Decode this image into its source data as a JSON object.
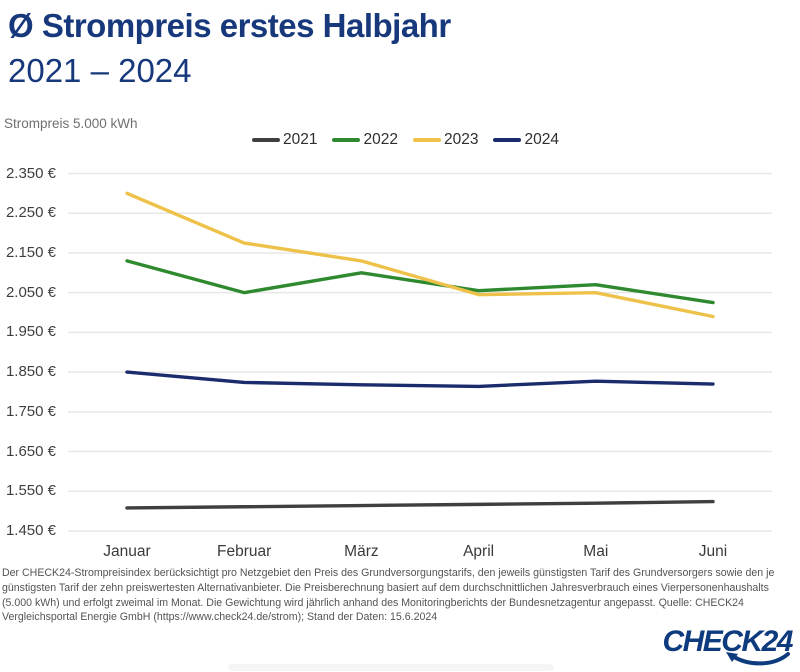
{
  "header": {
    "title": "Ø Strompreis erstes Halbjahr",
    "subtitle": "2021 – 2024"
  },
  "axis_unit_label": "Strompreis 5.000 kWh",
  "footer": {
    "disclaimer": "Der CHECK24-Strompreisindex berücksichtigt pro Netzgebiet den Preis des Grundversorgungstarifs, den jeweils günstigsten Tarif des Grundversorgers sowie den je günstigsten Tarif der zehn preiswertesten Alternativanbieter. Die Preisberechnung basiert auf dem durchschnittlichen Jahresverbrauch eines Vierpersonenhaushalts (5.000 kWh) und erfolgt zweimal im Monat. Die Gewichtung wird jährlich anhand des Monitoringberichts der Bundesnetzagentur angepasst. Quelle: CHECK24 Vergleichsportal Energie GmbH (https://www.check24.de/strom); Stand der Daten: 15.6.2024"
  },
  "logo": {
    "text": "CHECK24",
    "color": "#0e3a7e"
  },
  "colors": {
    "title_navy": "#17397c",
    "gridline": "#e7e7e7",
    "tick_text": "#3f3f3f"
  },
  "chart_data": {
    "type": "line",
    "title": "Ø Strompreis erstes Halbjahr 2021 – 2024",
    "xlabel": "",
    "ylabel": "Strompreis 5.000 kWh",
    "grid": true,
    "legend_position": "top",
    "ylim": [
      1.45,
      2.35
    ],
    "x": [
      "Januar",
      "Februar",
      "März",
      "April",
      "Mai",
      "Juni"
    ],
    "y_ticks": [
      {
        "label": "2.350 €",
        "value": 2.35
      },
      {
        "label": "2.250 €",
        "value": 2.25
      },
      {
        "label": "2.150 €",
        "value": 2.15
      },
      {
        "label": "2.050 €",
        "value": 2.05
      },
      {
        "label": "1.950 €",
        "value": 1.95
      },
      {
        "label": "1.850 €",
        "value": 1.85
      },
      {
        "label": "1.750 €",
        "value": 1.75
      },
      {
        "label": "1.650 €",
        "value": 1.65
      },
      {
        "label": "1.550 €",
        "value": 1.55
      },
      {
        "label": "1.450 €",
        "value": 1.45
      }
    ],
    "series": [
      {
        "name": "2021",
        "color": "#3f3f3f",
        "values": [
          1.508,
          1.511,
          1.514,
          1.517,
          1.52,
          1.524
        ]
      },
      {
        "name": "2022",
        "color": "#2f8a2f",
        "values": [
          2.13,
          2.05,
          2.1,
          2.055,
          2.07,
          2.025
        ]
      },
      {
        "name": "2023",
        "color": "#eec24a",
        "values": [
          2.3,
          2.175,
          2.13,
          2.045,
          2.05,
          1.99
        ]
      },
      {
        "name": "2024",
        "color": "#1b2c6d",
        "values": [
          1.85,
          1.824,
          1.818,
          1.814,
          1.827,
          1.82
        ]
      }
    ]
  }
}
